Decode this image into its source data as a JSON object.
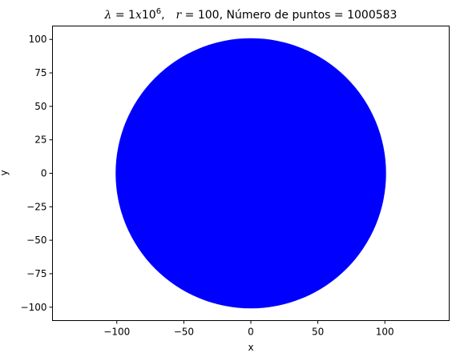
{
  "chart_data": {
    "type": "scatter",
    "title_parts": {
      "lambda_sym": "λ",
      "lambda_eq": " = 1",
      "x_var": "x",
      "ten": "10",
      "exp": "6",
      "comma1": ",",
      "r_sym": "r",
      "r_eq": " = 100",
      "rest": ", Número de puntos = 1000583"
    },
    "xlabel": "x",
    "ylabel": "y",
    "xlim": [
      -148,
      148
    ],
    "ylim": [
      -110,
      110
    ],
    "xticks": [
      -100,
      -50,
      0,
      50,
      100
    ],
    "yticks": [
      -100,
      -75,
      -50,
      -25,
      0,
      25,
      50,
      75,
      100
    ],
    "xtick_labels": [
      "−100",
      "−50",
      "0",
      "50",
      "100"
    ],
    "ytick_labels": [
      "−100",
      "−75",
      "−50",
      "−25",
      "0",
      "25",
      "50",
      "75",
      "100"
    ],
    "series": [
      {
        "shape": "filled-disk",
        "center": [
          0,
          0
        ],
        "radius": 100,
        "point_count": 1000583,
        "color": "#0000ff"
      }
    ],
    "grid": false
  }
}
